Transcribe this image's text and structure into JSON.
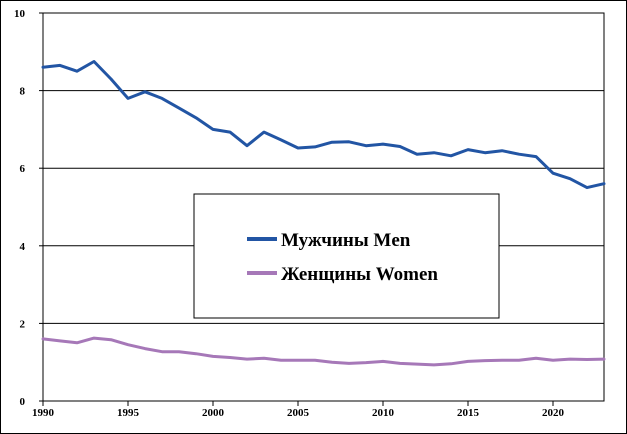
{
  "chart_data": {
    "type": "line",
    "title": "",
    "xlabel": "",
    "ylabel": "",
    "xlim": [
      1990,
      2023
    ],
    "ylim": [
      0,
      10
    ],
    "x_ticks": [
      1990,
      1995,
      2000,
      2005,
      2010,
      2015,
      2020
    ],
    "y_ticks": [
      0,
      2,
      4,
      6,
      8,
      10
    ],
    "grid": "horizontal",
    "legend_placement": "center",
    "x": [
      1990,
      1991,
      1992,
      1993,
      1994,
      1995,
      1996,
      1997,
      1998,
      1999,
      2000,
      2001,
      2002,
      2003,
      2004,
      2005,
      2006,
      2007,
      2008,
      2009,
      2010,
      2011,
      2012,
      2013,
      2014,
      2015,
      2016,
      2017,
      2018,
      2019,
      2020,
      2021,
      2022,
      2023
    ],
    "series": [
      {
        "name": "Мужчины Men",
        "color": "#2255a4",
        "values": [
          8.6,
          8.65,
          8.5,
          8.75,
          8.3,
          7.8,
          7.97,
          7.8,
          7.55,
          7.3,
          7.0,
          6.93,
          6.58,
          6.93,
          6.73,
          6.52,
          6.55,
          6.67,
          6.68,
          6.58,
          6.62,
          6.56,
          6.36,
          6.4,
          6.32,
          6.48,
          6.4,
          6.45,
          6.36,
          6.3,
          5.87,
          5.73,
          5.5,
          5.6
        ]
      },
      {
        "name": "Женщины Women",
        "color": "#a678b8",
        "values": [
          1.6,
          1.55,
          1.5,
          1.62,
          1.58,
          1.45,
          1.35,
          1.27,
          1.27,
          1.22,
          1.15,
          1.12,
          1.08,
          1.1,
          1.05,
          1.05,
          1.05,
          1.0,
          0.97,
          0.99,
          1.02,
          0.97,
          0.95,
          0.93,
          0.96,
          1.02,
          1.04,
          1.05,
          1.05,
          1.1,
          1.05,
          1.08,
          1.07,
          1.08
        ]
      }
    ]
  }
}
